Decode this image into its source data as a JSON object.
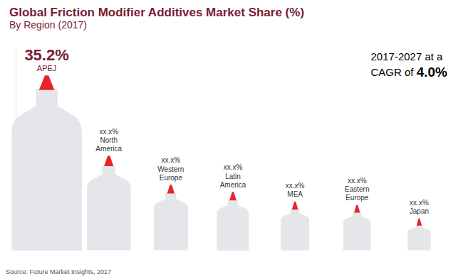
{
  "chart_data": {
    "type": "bar",
    "title": "Global Friction Modifier Additives Market Share (%)",
    "subtitle": "By Region (2017)",
    "annotations": [
      "2017-2027 at a",
      "CAGR of 4.0%"
    ],
    "source": "Source: Future Market Insights, 2017",
    "categories": [
      "APEJ",
      "North America",
      "Western Europe",
      "Latin America",
      "MEA",
      "Eastern Europe",
      "Japan"
    ],
    "values": [
      35.2,
      18.5,
      12.5,
      11.0,
      9.0,
      8.3,
      5.5
    ],
    "value_labels": [
      "35.2%",
      "xx.x%",
      "xx.x%",
      "xx.x%",
      "xx.x%",
      "xx.x%",
      "xx.x%"
    ],
    "color": "#e4e6ea",
    "ylim": [
      0,
      44
    ],
    "data_labels": true,
    "tick_labels": false,
    "grid": false
  }
}
